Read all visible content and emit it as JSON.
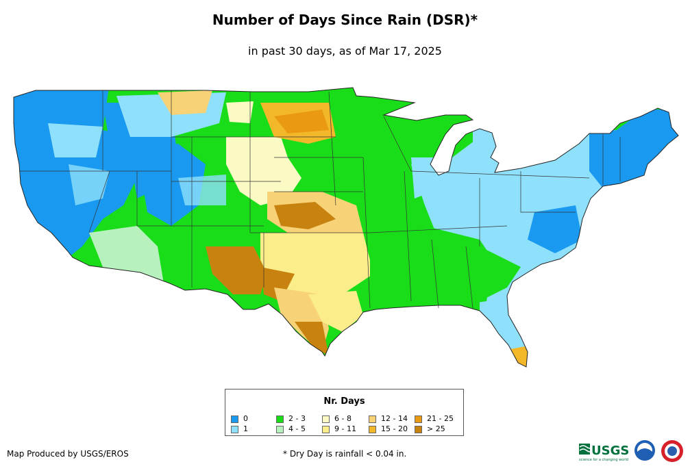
{
  "title": "Number of Days Since Rain (DSR)*",
  "subtitle": "in past 30 days, as of Mar 17, 2025",
  "legend": {
    "title": "Nr. Days",
    "items": [
      {
        "label": "0",
        "color": "#1a99f0"
      },
      {
        "label": "1",
        "color": "#8fe0fb"
      },
      {
        "label": "2 - 3",
        "color": "#19dd19"
      },
      {
        "label": "4 - 5",
        "color": "#b7f2be"
      },
      {
        "label": "6 - 8",
        "color": "#fcfac4"
      },
      {
        "label": "9 - 11",
        "color": "#fbee8a"
      },
      {
        "label": "12 - 14",
        "color": "#f7d277"
      },
      {
        "label": "15 - 20",
        "color": "#f3b82a"
      },
      {
        "label": "21 - 25",
        "color": "#e99a12"
      },
      {
        "label": "> 25",
        "color": "#c8820f"
      }
    ]
  },
  "footer": {
    "credit": "Map Produced by USGS/EROS",
    "note": "* Dry Day is rainfall < 0.04 in."
  },
  "logos": {
    "usgs": "USGS",
    "usgs_tagline": "science for a changing world",
    "noaa_icon": "noaa-logo",
    "nws_icon": "nws-logo"
  }
}
